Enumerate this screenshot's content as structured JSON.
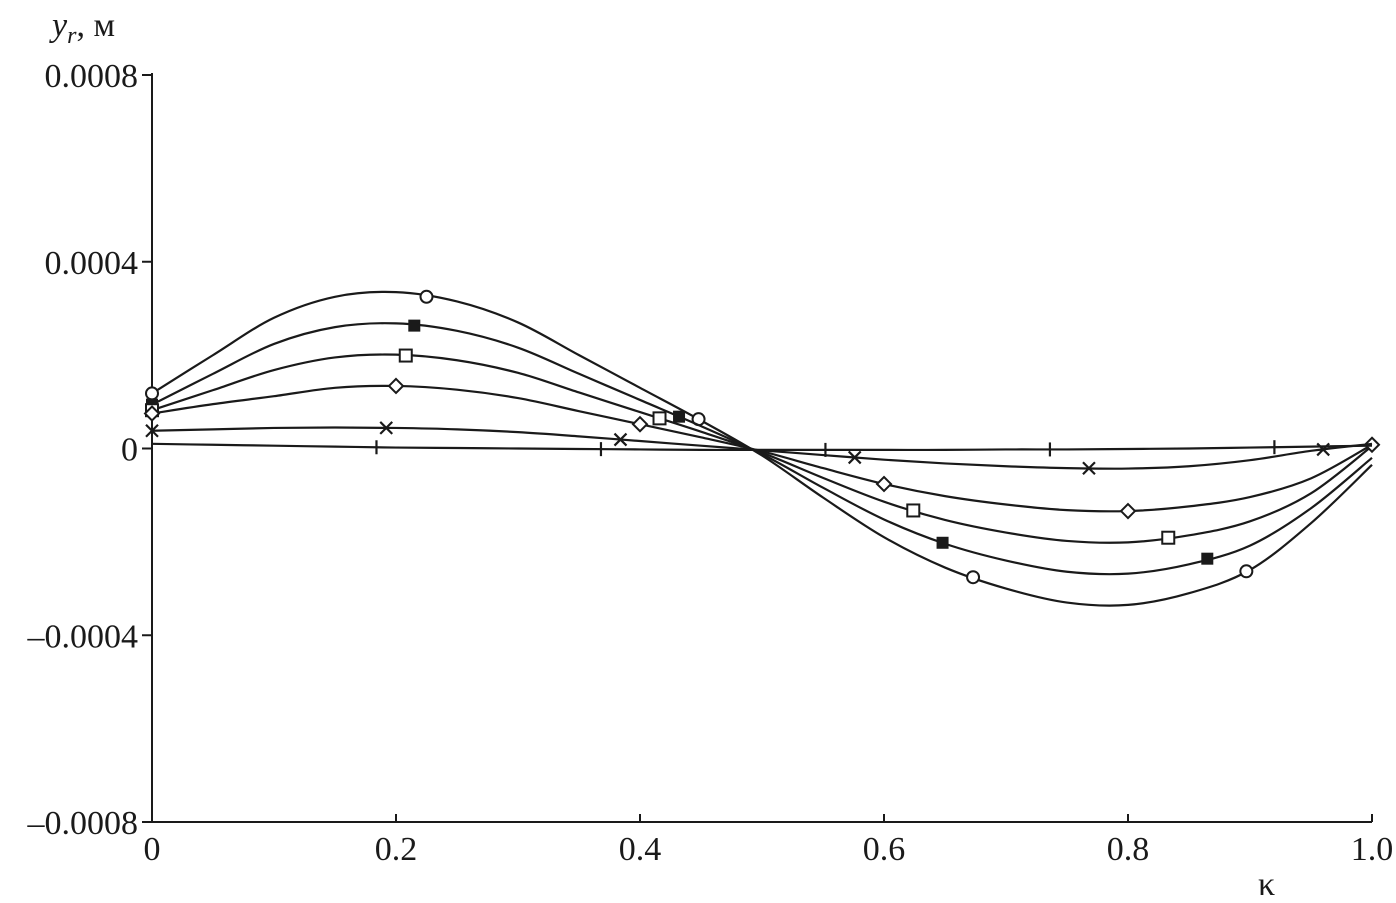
{
  "chart_data": {
    "type": "line",
    "title": "",
    "ylabel_var": "y",
    "ylabel_sub": "r",
    "ylabel_unit": ", м",
    "xlabel": "κ",
    "xlim": [
      0,
      1.0
    ],
    "ylim": [
      -0.0008,
      0.0008
    ],
    "grid": false,
    "legend": "none",
    "line_color": "#1a1a1a",
    "xticks": [
      0,
      0.2,
      0.4,
      0.6,
      0.8,
      1.0
    ],
    "xtick_labels": [
      "0",
      "0.2",
      "0.4",
      "0.6",
      "0.8",
      "1.0"
    ],
    "yticks": [
      0.0008,
      0.0004,
      0,
      -0.0004,
      -0.0008
    ],
    "ytick_labels": [
      "0.0008",
      "0.0004",
      "0",
      "–0.0004",
      "–0.0008"
    ],
    "x": [
      0,
      0.05,
      0.1,
      0.15,
      0.2,
      0.25,
      0.3,
      0.35,
      0.4,
      0.45,
      0.5,
      0.55,
      0.6,
      0.65,
      0.7,
      0.75,
      0.8,
      0.85,
      0.9,
      0.95,
      1.0
    ],
    "series": [
      {
        "marker": "circle-open",
        "values": [
          0.000118,
          0.0002,
          0.00028,
          0.000325,
          0.000335,
          0.000315,
          0.00027,
          0.0002,
          0.00013,
          6e-05,
          -1.5e-05,
          -0.000105,
          -0.00019,
          -0.000255,
          -0.0003,
          -0.00033,
          -0.000335,
          -0.00031,
          -0.00026,
          -0.00016,
          -3.5e-05
        ],
        "marker_x": [
          0,
          0.225,
          0.448,
          0.673,
          0.897
        ]
      },
      {
        "marker": "square-filled",
        "values": [
          9.4e-05,
          0.00016,
          0.000224,
          0.00026,
          0.000268,
          0.000252,
          0.000216,
          0.00016,
          0.000104,
          4.8e-05,
          -1.2e-05,
          -8.4e-05,
          -0.000152,
          -0.000204,
          -0.00024,
          -0.000264,
          -0.000268,
          -0.000248,
          -0.000208,
          -0.000128,
          -2e-05
        ],
        "marker_x": [
          0,
          0.215,
          0.432,
          0.648,
          0.865
        ]
      },
      {
        "marker": "square-open",
        "values": [
          8.2e-05,
          0.000125,
          0.000168,
          0.000195,
          0.000201,
          0.000189,
          0.000162,
          0.00012,
          7.8e-05,
          3.6e-05,
          -9e-06,
          -6.3e-05,
          -0.000114,
          -0.000153,
          -0.00018,
          -0.000198,
          -0.000201,
          -0.000186,
          -0.000156,
          -9.6e-05,
          5e-06
        ],
        "marker_x": [
          0,
          0.208,
          0.416,
          0.624,
          0.833
        ]
      },
      {
        "marker": "diamond-open",
        "values": [
          7.5e-05,
          9.5e-05,
          0.000112,
          0.00013,
          0.000134,
          0.000126,
          0.000108,
          8e-05,
          5.2e-05,
          2.4e-05,
          -6e-06,
          -4.2e-05,
          -7.6e-05,
          -0.000102,
          -0.00012,
          -0.000132,
          -0.000134,
          -0.000124,
          -0.000104,
          -6.4e-05,
          8e-06
        ],
        "marker_x": [
          0,
          0.2,
          0.4,
          0.6,
          0.8,
          1.0
        ]
      },
      {
        "marker": "cross",
        "values": [
          3.8e-05,
          4.1e-05,
          4.4e-05,
          4.5e-05,
          4.4e-05,
          4.1e-05,
          3.5e-05,
          2.6e-05,
          1.6e-05,
          6e-06,
          -4e-06,
          -1.4e-05,
          -2.4e-05,
          -3.2e-05,
          -3.8e-05,
          -4.2e-05,
          -4.3e-05,
          -3.8e-05,
          -2.5e-05,
          -5e-06,
          1e-05
        ],
        "marker_x": [
          0,
          0.192,
          0.384,
          0.576,
          0.768,
          0.96
        ]
      },
      {
        "marker": "plus",
        "values": [
          1e-05,
          8e-06,
          6e-06,
          4e-06,
          2e-06,
          1e-06,
          0,
          -1e-06,
          -2e-06,
          -3e-06,
          -3e-06,
          -3e-06,
          -3e-06,
          -3e-06,
          -2e-06,
          -2e-06,
          -1e-06,
          0,
          2e-06,
          4e-06,
          6e-06
        ],
        "marker_x": [
          0.184,
          0.368,
          0.552,
          0.736,
          0.92
        ]
      }
    ]
  }
}
